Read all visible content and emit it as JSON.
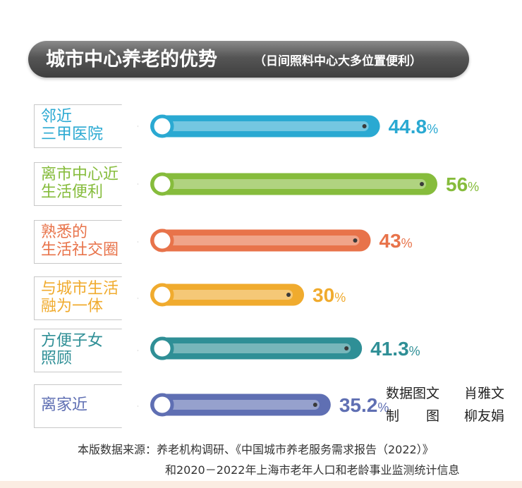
{
  "title": "城市中心养老的优势",
  "subtitle": "（日间照料中心大多位置便利）",
  "chart_data": {
    "type": "bar",
    "orientation": "horizontal",
    "categories": [
      [
        "邻近",
        "三甲医院"
      ],
      [
        "离市中心近",
        "生活便利"
      ],
      [
        "熟悉的",
        "生活社交圈"
      ],
      [
        "与城市生活",
        "融为一体"
      ],
      [
        "方便子女",
        "照顾"
      ],
      [
        "离家近"
      ]
    ],
    "values": [
      44.8,
      56,
      43,
      30,
      41.3,
      35.2
    ],
    "value_labels": [
      "44.8",
      "56",
      "43",
      "30",
      "41.3",
      "35.2"
    ],
    "unit": "%",
    "colors": [
      "#2aa9d2",
      "#86bc3c",
      "#e8734a",
      "#f0ab2e",
      "#2f8f96",
      "#5f6fb3"
    ],
    "xlim": [
      0,
      56
    ],
    "grid": false,
    "legend": "none"
  },
  "credits": {
    "line1_left": "数据图文",
    "line1_right": "肖雅文",
    "line2_left": "制　　图",
    "line2_right": "柳友娟"
  },
  "source": {
    "line1": "本版数据来源：养老机构调研、《中国城市养老服务需求报告（2022）》",
    "line2": "和2020－2022年上海市老年人口和老龄事业监测统计信息"
  }
}
